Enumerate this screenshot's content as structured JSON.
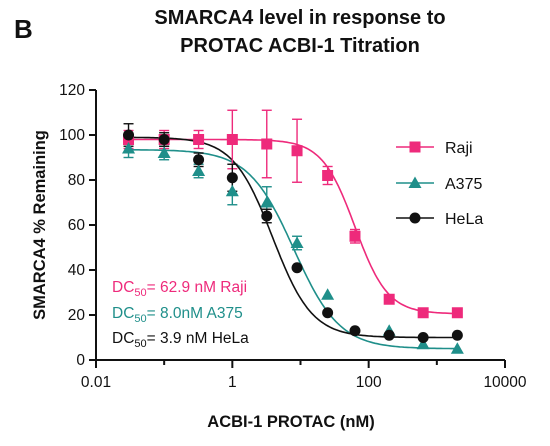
{
  "panel_label": "B",
  "chart_data": {
    "type": "scatter",
    "title_lines": [
      "SMARCA4 level in response to",
      "PROTAC ACBI-1 Titration"
    ],
    "xlabel": "ACBI-1 PROTAC (nM)",
    "ylabel": "SMARCA4 % Remaining",
    "xscale": "log",
    "xlim": [
      0.01,
      10000
    ],
    "ylim": [
      0,
      120
    ],
    "xticks": [
      0.01,
      1,
      100,
      10000
    ],
    "xtick_labels": [
      "0.01",
      "1",
      "100",
      "10000"
    ],
    "yticks": [
      0,
      20,
      40,
      60,
      80,
      100,
      120
    ],
    "ytick_labels": [
      "0",
      "20",
      "40",
      "60",
      "80",
      "100",
      "120"
    ],
    "grid": false,
    "legend_position": "right",
    "series": [
      {
        "name": "Raji",
        "color": "#ee2a7b",
        "marker": "square",
        "x": [
          0.03,
          0.1,
          0.32,
          1,
          3.2,
          8.9,
          25,
          63,
          200,
          630,
          2000
        ],
        "y": [
          98,
          98,
          98,
          98,
          96,
          93,
          82,
          55,
          27,
          21,
          21
        ],
        "yerr": [
          4,
          4,
          4,
          13,
          15,
          14,
          4,
          3,
          2,
          2,
          2
        ],
        "fit": {
          "bottom": 20.5,
          "top": 98,
          "ec50": 62.9,
          "hill": 1.8
        }
      },
      {
        "name": "A375",
        "color": "#1f8f8a",
        "marker": "triangle",
        "x": [
          0.03,
          0.1,
          0.32,
          1,
          3.2,
          8.9,
          25,
          200,
          630,
          2000
        ],
        "y": [
          94,
          92,
          84,
          75,
          70,
          52,
          29,
          13,
          7,
          5
        ],
        "yerr": [
          4,
          3,
          3,
          6,
          7,
          3,
          2,
          2,
          2,
          2
        ],
        "fit": {
          "bottom": 5,
          "top": 93.5,
          "ec50": 8.0,
          "hill": 1.3
        }
      },
      {
        "name": "HeLa",
        "color": "#111111",
        "marker": "circle",
        "x": [
          0.03,
          0.1,
          0.32,
          1,
          3.2,
          8.9,
          25,
          63,
          200,
          630,
          2000
        ],
        "y": [
          100,
          98,
          89,
          81,
          64,
          41,
          21,
          13,
          11,
          10,
          11
        ],
        "yerr": [
          5,
          3,
          3,
          6,
          3,
          2,
          2,
          2,
          2,
          2,
          2
        ],
        "fit": {
          "bottom": 10,
          "top": 99,
          "ec50": 3.9,
          "hill": 1.5
        }
      }
    ],
    "annotations": [
      {
        "prefix": "DC",
        "sub": "50",
        "text": "= 62.9 nM Raji",
        "color": "#ee2a7b"
      },
      {
        "prefix": "DC",
        "sub": "50",
        "text": "= 8.0nM A375",
        "color": "#1f8f8a"
      },
      {
        "prefix": "DC",
        "sub": "50",
        "text": "= 3.9 nM HeLa",
        "color": "#111111"
      }
    ]
  }
}
